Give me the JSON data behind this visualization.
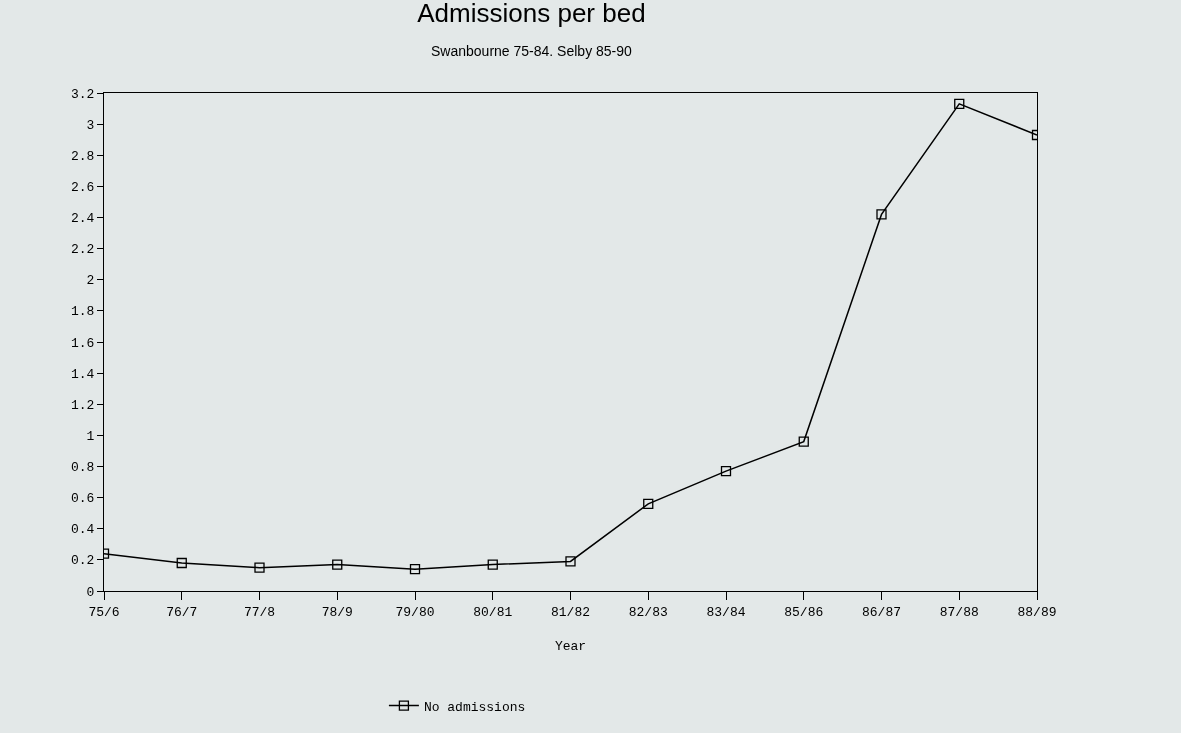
{
  "chart_data": {
    "type": "line",
    "title": "Admissions per bed",
    "subtitle": "Swanbourne 75-84. Selby 85-90",
    "xlabel": "Year",
    "categories": [
      "75/6",
      "76/7",
      "77/8",
      "78/9",
      "79/80",
      "80/81",
      "81/82",
      "82/83",
      "83/84",
      "85/86",
      "86/87",
      "87/88",
      "88/89"
    ],
    "series": [
      {
        "name": "No admissions",
        "color": "#000000",
        "values": [
          0.24,
          0.18,
          0.15,
          0.17,
          0.14,
          0.17,
          0.19,
          0.56,
          0.77,
          0.96,
          2.42,
          3.13,
          2.93
        ]
      }
    ],
    "ylim": [
      0,
      3.2
    ],
    "yticks": [
      0,
      0.2,
      0.4,
      0.6,
      0.8,
      1,
      1.2,
      1.4,
      1.6,
      1.8,
      2,
      2.2,
      2.4,
      2.6,
      2.8,
      3,
      3.2
    ],
    "grid": false,
    "legend": "bottom",
    "marker": "square",
    "line_style": "solid"
  }
}
